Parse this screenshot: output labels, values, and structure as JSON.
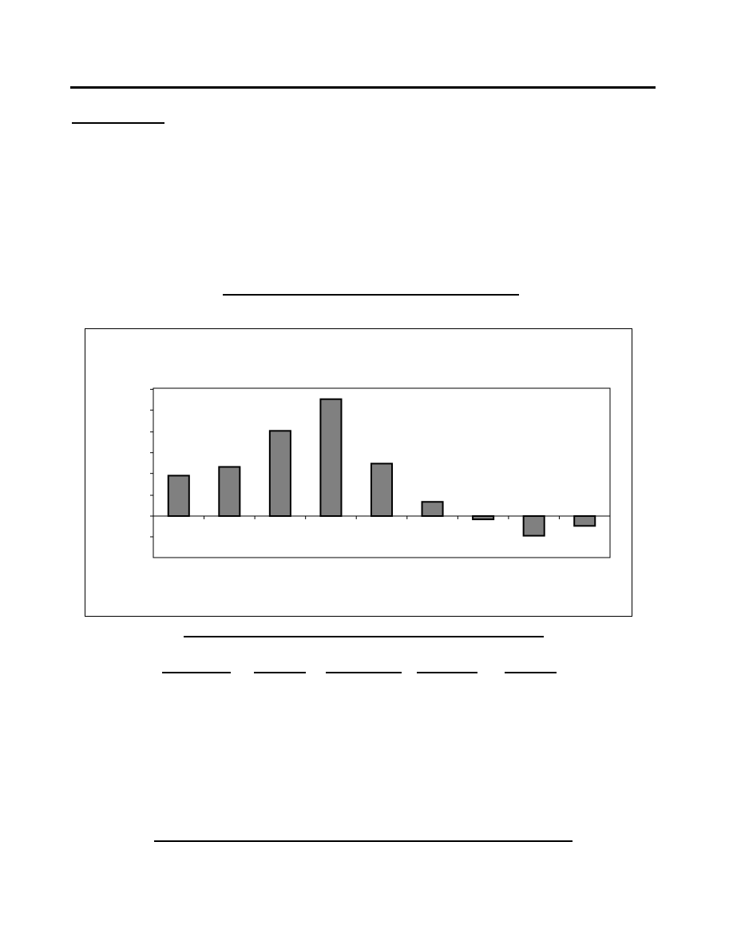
{
  "chart_data": {
    "type": "bar",
    "title": "",
    "xlabel": "",
    "ylabel": "",
    "categories": [
      "",
      "",
      "",
      "",
      "",
      "",
      "",
      "",
      ""
    ],
    "values": [
      3.7,
      4.5,
      7.8,
      10.7,
      4.8,
      1.3,
      -0.3,
      -1.8,
      -0.9
    ],
    "ylim": [
      -3.8,
      11.7
    ],
    "yticks": [
      -1.9,
      0,
      1.9,
      3.9,
      5.8,
      7.7,
      9.7,
      11.6
    ],
    "grid": false,
    "legend": "none",
    "bar_color": "#808080"
  }
}
